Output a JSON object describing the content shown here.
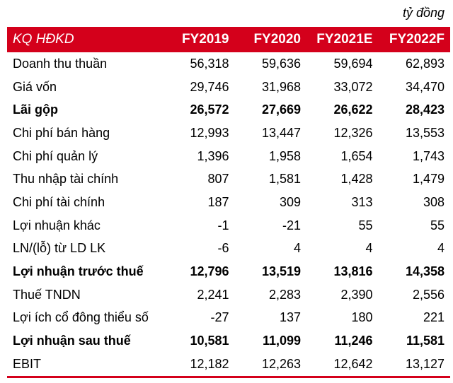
{
  "unit": "tỷ đồng",
  "header": {
    "label": "KQ HĐKD",
    "years": [
      "FY2019",
      "FY2020",
      "FY2021E",
      "FY2022F"
    ]
  },
  "colors": {
    "accent": "#d4001b",
    "text": "#000000",
    "header_text": "#ffffff"
  },
  "rows": [
    {
      "label": "Doanh thu thuần",
      "bold": false,
      "values": [
        "56,318",
        "59,636",
        "59,694",
        "62,893"
      ]
    },
    {
      "label": "Giá vốn",
      "bold": false,
      "values": [
        "29,746",
        "31,968",
        "33,072",
        "34,470"
      ]
    },
    {
      "label": "Lãi gộp",
      "bold": true,
      "values": [
        "26,572",
        "27,669",
        "26,622",
        "28,423"
      ]
    },
    {
      "label": "Chi phí bán hàng",
      "bold": false,
      "values": [
        "12,993",
        "13,447",
        "12,326",
        "13,553"
      ]
    },
    {
      "label": "Chi phí quản lý",
      "bold": false,
      "values": [
        "1,396",
        "1,958",
        "1,654",
        "1,743"
      ]
    },
    {
      "label": "Thu nhập tài chính",
      "bold": false,
      "values": [
        "807",
        "1,581",
        "1,428",
        "1,479"
      ]
    },
    {
      "label": "Chi phí tài chính",
      "bold": false,
      "values": [
        "187",
        "309",
        "313",
        "308"
      ]
    },
    {
      "label": "Lợi nhuận khác",
      "bold": false,
      "values": [
        "-1",
        "-21",
        "55",
        "55"
      ]
    },
    {
      "label": "LN/(lỗ) từ LD LK",
      "bold": false,
      "values": [
        "-6",
        "4",
        "4",
        "4"
      ]
    },
    {
      "label": "Lợi nhuận trước thuế",
      "bold": true,
      "values": [
        "12,796",
        "13,519",
        "13,816",
        "14,358"
      ]
    },
    {
      "label": "Thuế TNDN",
      "bold": false,
      "values": [
        "2,241",
        "2,283",
        "2,390",
        "2,556"
      ]
    },
    {
      "label": "Lợi ích cổ đông thiểu số",
      "bold": false,
      "values": [
        "-27",
        "137",
        "180",
        "221"
      ]
    },
    {
      "label": "Lợi nhuận sau thuế",
      "bold": true,
      "values": [
        "10,581",
        "11,099",
        "11,246",
        "11,581"
      ]
    },
    {
      "label": "EBIT",
      "bold": false,
      "values": [
        "12,182",
        "12,263",
        "12,642",
        "13,127"
      ]
    }
  ]
}
